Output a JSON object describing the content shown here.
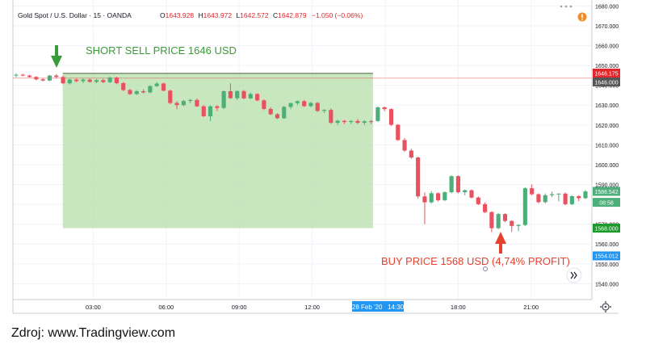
{
  "header": {
    "symbol": "Gold Spot / U.S. Dollar · 15 · OANDA",
    "ohlc": [
      {
        "label": "O",
        "value": "1643.928"
      },
      {
        "label": "H",
        "value": "1643.972"
      },
      {
        "label": "L",
        "value": "1642.572"
      },
      {
        "label": "C",
        "value": "1642.879"
      }
    ],
    "change": "−1.050 (−0.06%)"
  },
  "annotations": {
    "short_sell": "SHORT SELL PRICE 1646 USD",
    "buy": "BUY PRICE 1568 USD (4,74% PROFIT)"
  },
  "axis_badges": [
    {
      "value": 1646.175,
      "text": "1646.175",
      "color": "#e4252c"
    },
    {
      "value": 1646.0,
      "text": "1646.000",
      "color": "#555555"
    },
    {
      "value": 1586.542,
      "text": "1586.542",
      "color": "#4caf7a"
    },
    {
      "value": 1581.0,
      "text": "08:58",
      "color": "#4caf7a"
    },
    {
      "value": 1568.0,
      "text": "1568.000",
      "color": "#1b9a2a"
    },
    {
      "value": 1554.012,
      "text": "1554.012",
      "color": "#2196f3"
    }
  ],
  "crosshair_label": "28 Feb '20   14:30",
  "caption": "Zdroj: www.Tradingview.com",
  "colors": {
    "up": "#4caf7a",
    "down": "#e8515f",
    "box_fill": "#b6dfa9",
    "arrow_green": "#3a9b3a",
    "arrow_red": "#e4422e",
    "text_green": "#3a9b3a",
    "text_red": "#e4422e"
  },
  "icons": [
    "orange-alert-icon",
    "gear-icon",
    "forward-chevrons-icon"
  ],
  "chart_data": {
    "type": "candlestick",
    "title": "Gold Spot / U.S. Dollar · 15 · OANDA",
    "ylim": [
      1532,
      1683
    ],
    "y_ticks": [
      1540,
      1550,
      1560,
      1570,
      1580,
      1590,
      1600,
      1610,
      1620,
      1630,
      1640,
      1650,
      1660,
      1670,
      1680
    ],
    "y_tick_labels": [
      "1540.000",
      "1550.000",
      "1560.000",
      "1570.000",
      "1580.000",
      "1590.000",
      "1600.000",
      "1610.000",
      "1620.000",
      "1630.000",
      "1640.000",
      "1650.000",
      "1660.000",
      "1670.000",
      "1680.000"
    ],
    "x_ticks": [
      "03:00",
      "06:00",
      "09:00",
      "12:00",
      "15:00",
      "18:00",
      "21:00"
    ],
    "x_tick_hours": [
      3,
      6,
      9,
      12,
      15,
      18,
      21
    ],
    "x_range_hours": [
      -0.3,
      23.5
    ],
    "trade_box": {
      "start_hour": 1.75,
      "end_hour": 14.5,
      "top": 1646,
      "bottom": 1568
    },
    "grid": true,
    "candles": [
      {
        "o": 1645.0,
        "h": 1646.0,
        "l": 1644.0,
        "c": 1645.3
      },
      {
        "o": 1645.3,
        "h": 1645.8,
        "l": 1644.6,
        "c": 1644.9
      },
      {
        "o": 1644.9,
        "h": 1645.3,
        "l": 1643.9,
        "c": 1644.2
      },
      {
        "o": 1644.2,
        "h": 1644.6,
        "l": 1642.5,
        "c": 1643.0
      },
      {
        "o": 1643.0,
        "h": 1643.6,
        "l": 1642.0,
        "c": 1642.4
      },
      {
        "o": 1642.4,
        "h": 1645.2,
        "l": 1642.1,
        "c": 1644.9
      },
      {
        "o": 1644.9,
        "h": 1645.6,
        "l": 1643.4,
        "c": 1644.2
      },
      {
        "o": 1644.2,
        "h": 1644.9,
        "l": 1640.6,
        "c": 1641.0
      },
      {
        "o": 1641.0,
        "h": 1643.4,
        "l": 1640.4,
        "c": 1642.9
      },
      {
        "o": 1642.9,
        "h": 1643.4,
        "l": 1641.6,
        "c": 1642.1
      },
      {
        "o": 1642.1,
        "h": 1643.6,
        "l": 1641.1,
        "c": 1642.9
      },
      {
        "o": 1642.9,
        "h": 1643.4,
        "l": 1641.4,
        "c": 1641.7
      },
      {
        "o": 1641.7,
        "h": 1643.2,
        "l": 1641.1,
        "c": 1642.6
      },
      {
        "o": 1642.6,
        "h": 1643.4,
        "l": 1641.1,
        "c": 1641.6
      },
      {
        "o": 1641.6,
        "h": 1644.4,
        "l": 1641.1,
        "c": 1643.9
      },
      {
        "o": 1643.9,
        "h": 1644.3,
        "l": 1640.6,
        "c": 1641.1
      },
      {
        "o": 1641.1,
        "h": 1641.6,
        "l": 1637.1,
        "c": 1637.6
      },
      {
        "o": 1637.6,
        "h": 1638.3,
        "l": 1635.1,
        "c": 1635.6
      },
      {
        "o": 1635.6,
        "h": 1637.6,
        "l": 1635.1,
        "c": 1637.0
      },
      {
        "o": 1637.0,
        "h": 1638.0,
        "l": 1636.0,
        "c": 1636.4
      },
      {
        "o": 1636.4,
        "h": 1640.0,
        "l": 1636.0,
        "c": 1639.6
      },
      {
        "o": 1639.6,
        "h": 1641.6,
        "l": 1639.1,
        "c": 1640.9
      },
      {
        "o": 1640.9,
        "h": 1641.3,
        "l": 1637.0,
        "c": 1637.3
      },
      {
        "o": 1637.3,
        "h": 1637.9,
        "l": 1630.5,
        "c": 1631.1
      },
      {
        "o": 1631.1,
        "h": 1632.0,
        "l": 1628.0,
        "c": 1630.0
      },
      {
        "o": 1630.0,
        "h": 1632.6,
        "l": 1629.5,
        "c": 1632.1
      },
      {
        "o": 1632.1,
        "h": 1633.2,
        "l": 1631.0,
        "c": 1632.6
      },
      {
        "o": 1632.6,
        "h": 1633.4,
        "l": 1629.0,
        "c": 1629.4
      },
      {
        "o": 1629.4,
        "h": 1630.0,
        "l": 1624.0,
        "c": 1624.4
      },
      {
        "o": 1624.4,
        "h": 1630.0,
        "l": 1622.0,
        "c": 1629.4
      },
      {
        "o": 1629.4,
        "h": 1630.0,
        "l": 1627.0,
        "c": 1628.6
      },
      {
        "o": 1628.6,
        "h": 1637.4,
        "l": 1628.0,
        "c": 1637.0
      },
      {
        "o": 1637.0,
        "h": 1641.0,
        "l": 1633.1,
        "c": 1633.5
      },
      {
        "o": 1633.5,
        "h": 1637.5,
        "l": 1632.6,
        "c": 1637.1
      },
      {
        "o": 1637.1,
        "h": 1637.6,
        "l": 1633.0,
        "c": 1633.4
      },
      {
        "o": 1633.4,
        "h": 1636.4,
        "l": 1633.0,
        "c": 1635.6
      },
      {
        "o": 1635.6,
        "h": 1636.0,
        "l": 1632.0,
        "c": 1632.4
      },
      {
        "o": 1632.4,
        "h": 1633.0,
        "l": 1627.5,
        "c": 1628.1
      },
      {
        "o": 1628.1,
        "h": 1629.0,
        "l": 1625.0,
        "c": 1625.4
      },
      {
        "o": 1625.4,
        "h": 1626.0,
        "l": 1623.0,
        "c": 1623.4
      },
      {
        "o": 1623.4,
        "h": 1629.6,
        "l": 1623.0,
        "c": 1629.1
      },
      {
        "o": 1629.1,
        "h": 1631.4,
        "l": 1628.0,
        "c": 1631.0
      },
      {
        "o": 1631.0,
        "h": 1632.4,
        "l": 1630.0,
        "c": 1632.0
      },
      {
        "o": 1632.0,
        "h": 1632.6,
        "l": 1629.1,
        "c": 1629.5
      },
      {
        "o": 1629.5,
        "h": 1631.6,
        "l": 1629.0,
        "c": 1631.1
      },
      {
        "o": 1631.1,
        "h": 1631.6,
        "l": 1626.5,
        "c": 1627.1
      },
      {
        "o": 1627.1,
        "h": 1628.0,
        "l": 1626.0,
        "c": 1627.6
      },
      {
        "o": 1627.6,
        "h": 1628.4,
        "l": 1620.5,
        "c": 1621.1
      },
      {
        "o": 1621.1,
        "h": 1622.6,
        "l": 1620.0,
        "c": 1622.1
      },
      {
        "o": 1622.1,
        "h": 1622.5,
        "l": 1620.5,
        "c": 1621.5
      },
      {
        "o": 1621.5,
        "h": 1622.5,
        "l": 1620.5,
        "c": 1622.0
      },
      {
        "o": 1622.0,
        "h": 1623.0,
        "l": 1620.4,
        "c": 1621.1
      },
      {
        "o": 1621.1,
        "h": 1622.4,
        "l": 1620.0,
        "c": 1621.9
      },
      {
        "o": 1621.9,
        "h": 1622.6,
        "l": 1620.5,
        "c": 1621.6
      },
      {
        "o": 1622.0,
        "h": 1629.4,
        "l": 1621.5,
        "c": 1628.9
      },
      {
        "o": 1628.9,
        "h": 1629.3,
        "l": 1627.0,
        "c": 1628.0
      },
      {
        "o": 1628.0,
        "h": 1628.4,
        "l": 1619.5,
        "c": 1620.1
      },
      {
        "o": 1620.1,
        "h": 1620.5,
        "l": 1612.0,
        "c": 1612.4
      },
      {
        "o": 1612.4,
        "h": 1613.4,
        "l": 1606.5,
        "c": 1607.1
      },
      {
        "o": 1607.1,
        "h": 1608.0,
        "l": 1603.0,
        "c": 1603.6
      },
      {
        "o": 1603.6,
        "h": 1604.0,
        "l": 1583.0,
        "c": 1584.0
      },
      {
        "o": 1584.0,
        "h": 1586.0,
        "l": 1570.0,
        "c": 1581.0
      },
      {
        "o": 1581.0,
        "h": 1586.6,
        "l": 1580.4,
        "c": 1585.6
      },
      {
        "o": 1585.6,
        "h": 1586.0,
        "l": 1581.5,
        "c": 1582.1
      },
      {
        "o": 1582.1,
        "h": 1586.5,
        "l": 1581.6,
        "c": 1586.1
      },
      {
        "o": 1586.1,
        "h": 1594.6,
        "l": 1585.5,
        "c": 1594.2
      },
      {
        "o": 1594.2,
        "h": 1594.6,
        "l": 1585.5,
        "c": 1586.1
      },
      {
        "o": 1586.1,
        "h": 1587.5,
        "l": 1584.6,
        "c": 1587.1
      },
      {
        "o": 1587.1,
        "h": 1587.5,
        "l": 1583.0,
        "c": 1583.4
      },
      {
        "o": 1583.4,
        "h": 1584.0,
        "l": 1579.6,
        "c": 1580.1
      },
      {
        "o": 1580.1,
        "h": 1581.0,
        "l": 1575.5,
        "c": 1576.1
      },
      {
        "o": 1576.1,
        "h": 1576.5,
        "l": 1566.0,
        "c": 1568.0
      },
      {
        "o": 1568.0,
        "h": 1575.6,
        "l": 1567.5,
        "c": 1575.1
      },
      {
        "o": 1575.1,
        "h": 1575.5,
        "l": 1571.0,
        "c": 1571.6
      },
      {
        "o": 1571.6,
        "h": 1572.0,
        "l": 1566.1,
        "c": 1569.1
      },
      {
        "o": 1569.1,
        "h": 1570.0,
        "l": 1566.5,
        "c": 1569.6
      },
      {
        "o": 1569.6,
        "h": 1588.6,
        "l": 1569.1,
        "c": 1588.1
      },
      {
        "o": 1588.1,
        "h": 1590.0,
        "l": 1584.5,
        "c": 1585.1
      },
      {
        "o": 1585.1,
        "h": 1585.5,
        "l": 1580.5,
        "c": 1581.1
      },
      {
        "o": 1581.1,
        "h": 1585.5,
        "l": 1580.5,
        "c": 1584.6
      },
      {
        "o": 1584.6,
        "h": 1586.5,
        "l": 1583.6,
        "c": 1585.1
      },
      {
        "o": 1585.1,
        "h": 1585.6,
        "l": 1581.5,
        "c": 1585.4
      },
      {
        "o": 1585.4,
        "h": 1586.0,
        "l": 1579.5,
        "c": 1580.1
      },
      {
        "o": 1580.1,
        "h": 1584.6,
        "l": 1579.6,
        "c": 1584.1
      },
      {
        "o": 1584.1,
        "h": 1584.6,
        "l": 1581.6,
        "c": 1583.1
      },
      {
        "o": 1583.1,
        "h": 1587.2,
        "l": 1582.6,
        "c": 1586.5
      }
    ]
  }
}
